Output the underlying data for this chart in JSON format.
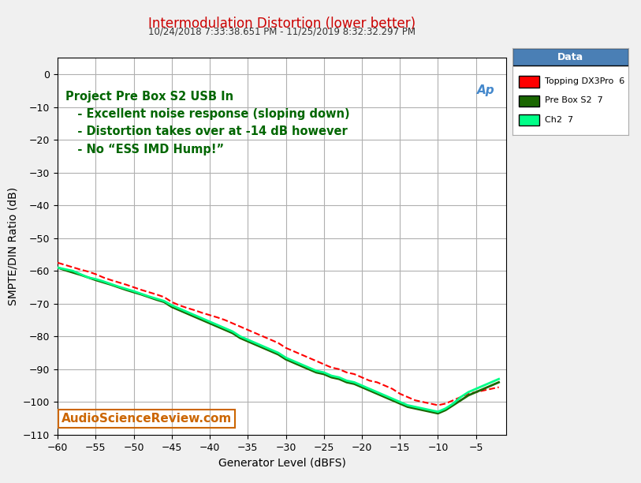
{
  "title_main": "Intermodulation Distortion (lower better)",
  "title_sub": "10/24/2018 7:33:38.651 PM - 11/25/2019 8:32:32.297 PM",
  "xlabel": "Generator Level (dBFS)",
  "ylabel": "SMPTE/DIN Ratio (dB)",
  "xlim": [
    -60,
    -1
  ],
  "ylim": [
    -110,
    5
  ],
  "xticks": [
    -60,
    -55,
    -50,
    -45,
    -40,
    -35,
    -30,
    -25,
    -20,
    -15,
    -10,
    -5
  ],
  "yticks": [
    0,
    -10,
    -20,
    -30,
    -40,
    -50,
    -60,
    -70,
    -80,
    -90,
    -100,
    -110
  ],
  "bg_color": "#f0f0f0",
  "plot_bg_color": "#ffffff",
  "grid_color": "#b0b0b0",
  "annotation_text": "Project Pre Box S2 USB In\n   - Excellent noise response (sloping down)\n   - Distortion takes over at -14 dB however\n   - No “ESS IMD Hump!”",
  "watermark": "AudioScienceReview.com",
  "legend_title": "Data",
  "legend_entries": [
    "Topping DX3Pro  6",
    "Pre Box S2  7",
    "Ch2  7"
  ],
  "legend_colors": [
    "#ff0000",
    "#1a6600",
    "#00ff88"
  ],
  "x_topping": [
    -60,
    -59,
    -58,
    -57,
    -56,
    -55,
    -54,
    -53,
    -52,
    -51,
    -50,
    -49,
    -48,
    -47,
    -46,
    -45,
    -44,
    -43,
    -42,
    -41,
    -40,
    -39,
    -38,
    -37,
    -36,
    -35,
    -34,
    -33,
    -32,
    -31,
    -30,
    -29,
    -28,
    -27,
    -26,
    -25,
    -24,
    -23,
    -22,
    -21,
    -20,
    -19,
    -18,
    -17,
    -16,
    -15,
    -14,
    -13,
    -12,
    -11,
    -10,
    -9,
    -8,
    -7,
    -6,
    -5,
    -4,
    -3,
    -2
  ],
  "y_topping": [
    -57.5,
    -58.2,
    -58.9,
    -59.6,
    -60.2,
    -61.0,
    -62.0,
    -62.8,
    -63.5,
    -64.2,
    -65.0,
    -65.8,
    -66.5,
    -67.2,
    -68.0,
    -69.5,
    -70.5,
    -71.3,
    -72.0,
    -72.8,
    -73.5,
    -74.2,
    -75.0,
    -76.0,
    -77.0,
    -78.0,
    -79.0,
    -80.0,
    -81.0,
    -82.0,
    -83.5,
    -84.5,
    -85.5,
    -86.5,
    -87.5,
    -88.5,
    -89.5,
    -90.0,
    -91.0,
    -91.5,
    -92.5,
    -93.5,
    -94.0,
    -95.0,
    -96.0,
    -97.5,
    -98.5,
    -99.5,
    -100.0,
    -100.5,
    -101.0,
    -100.5,
    -99.5,
    -98.5,
    -97.5,
    -97.0,
    -96.5,
    -96.0,
    -95.5
  ],
  "x_prebox": [
    -60,
    -59,
    -58,
    -57,
    -56,
    -55,
    -54,
    -53,
    -52,
    -51,
    -50,
    -49,
    -48,
    -47,
    -46,
    -45,
    -44,
    -43,
    -42,
    -41,
    -40,
    -39,
    -38,
    -37,
    -36,
    -35,
    -34,
    -33,
    -32,
    -31,
    -30,
    -29,
    -28,
    -27,
    -26,
    -25,
    -24,
    -23,
    -22,
    -21,
    -20,
    -19,
    -18,
    -17,
    -16,
    -15,
    -14,
    -13,
    -12,
    -11,
    -10,
    -9,
    -8,
    -7,
    -6,
    -5,
    -4,
    -3,
    -2
  ],
  "y_prebox": [
    -59.0,
    -59.8,
    -60.5,
    -61.2,
    -62.0,
    -62.8,
    -63.5,
    -64.2,
    -65.0,
    -65.8,
    -66.5,
    -67.2,
    -68.0,
    -68.8,
    -69.5,
    -71.0,
    -72.0,
    -73.0,
    -74.0,
    -75.0,
    -76.0,
    -77.0,
    -78.0,
    -79.0,
    -80.5,
    -81.5,
    -82.5,
    -83.5,
    -84.5,
    -85.5,
    -87.0,
    -88.0,
    -89.0,
    -90.0,
    -91.0,
    -91.5,
    -92.5,
    -93.0,
    -94.0,
    -94.5,
    -95.5,
    -96.5,
    -97.5,
    -98.5,
    -99.5,
    -100.5,
    -101.5,
    -102.0,
    -102.5,
    -103.0,
    -103.5,
    -102.5,
    -101.0,
    -99.5,
    -98.0,
    -97.0,
    -96.0,
    -95.0,
    -94.0
  ],
  "x_ch2": [
    -60,
    -59,
    -58,
    -57,
    -56,
    -55,
    -54,
    -53,
    -52,
    -51,
    -50,
    -49,
    -48,
    -47,
    -46,
    -45,
    -44,
    -43,
    -42,
    -41,
    -40,
    -39,
    -38,
    -37,
    -36,
    -35,
    -34,
    -33,
    -32,
    -31,
    -30,
    -29,
    -28,
    -27,
    -26,
    -25,
    -24,
    -23,
    -22,
    -21,
    -20,
    -19,
    -18,
    -17,
    -16,
    -15,
    -14,
    -13,
    -12,
    -11,
    -10,
    -9,
    -8,
    -7,
    -6,
    -5,
    -4,
    -3,
    -2
  ],
  "y_ch2": [
    -59.0,
    -59.5,
    -60.0,
    -61.0,
    -62.0,
    -62.5,
    -63.2,
    -64.0,
    -64.8,
    -65.5,
    -66.2,
    -67.0,
    -67.8,
    -68.5,
    -69.2,
    -70.5,
    -71.5,
    -72.5,
    -73.5,
    -74.5,
    -75.5,
    -76.5,
    -77.5,
    -78.5,
    -80.0,
    -81.0,
    -82.0,
    -83.0,
    -84.0,
    -85.0,
    -86.5,
    -87.5,
    -88.5,
    -89.5,
    -90.5,
    -91.0,
    -92.0,
    -92.5,
    -93.5,
    -94.0,
    -95.0,
    -96.0,
    -97.0,
    -98.0,
    -99.0,
    -100.0,
    -101.0,
    -101.5,
    -102.0,
    -102.5,
    -103.0,
    -102.0,
    -100.5,
    -98.5,
    -97.0,
    -96.0,
    -95.0,
    -94.0,
    -93.0
  ]
}
